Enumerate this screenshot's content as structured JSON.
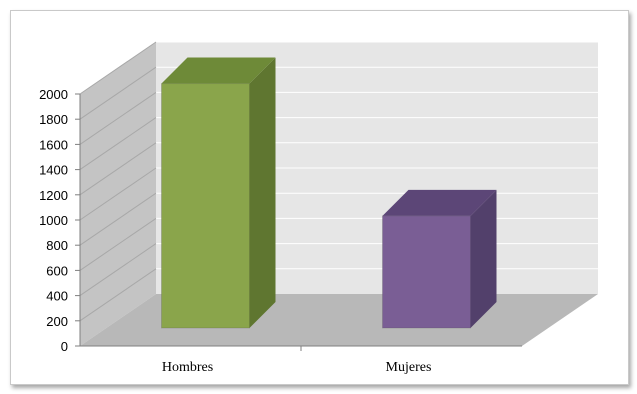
{
  "chart_data": {
    "type": "bar",
    "categories": [
      "Hombres",
      "Mujeres"
    ],
    "values": [
      1940,
      890
    ],
    "ylim": [
      0,
      2000
    ],
    "yticks": [
      "0",
      "200",
      "400",
      "600",
      "800",
      "1000",
      "1200",
      "1400",
      "1600",
      "1800",
      "2000"
    ],
    "title": "",
    "xlabel": "",
    "ylabel": "",
    "grid": true,
    "style": "3d-column",
    "colors": {
      "bars": [
        "#8aa54b",
        "#7a5e95"
      ],
      "bar_sides": [
        "#5f7630",
        "#52406b"
      ],
      "bar_tops": [
        "#6e8a38",
        "#5c4677"
      ],
      "wall": "#e6e6e6",
      "side_wall": "#c4c4c4",
      "floor": "#b8b8b8",
      "gridline": "#ffffff"
    }
  }
}
